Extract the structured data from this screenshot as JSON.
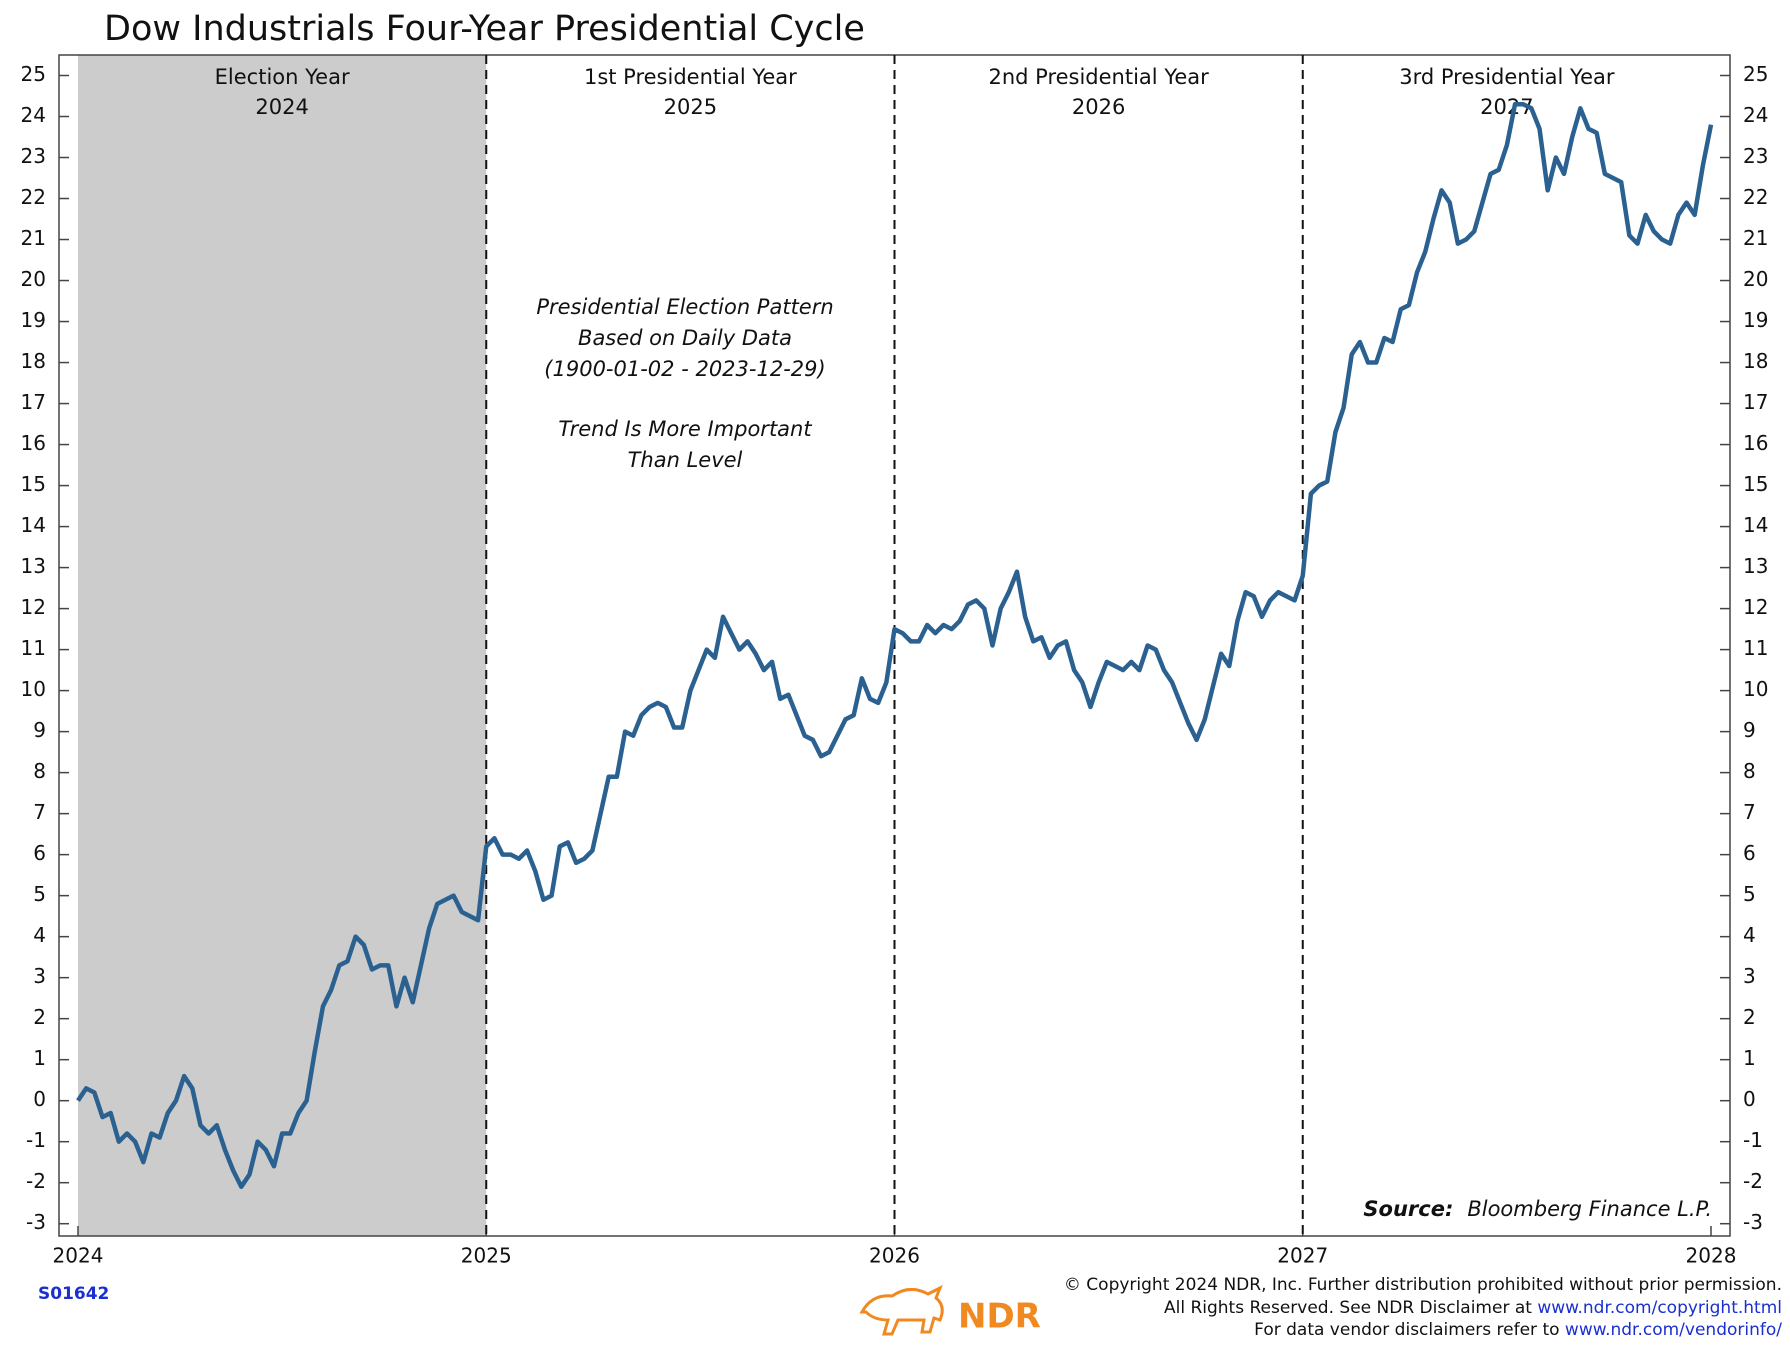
{
  "chart_data": {
    "type": "line",
    "title": "Dow Industrials Four-Year Presidential Cycle",
    "periods": [
      {
        "label": "Election Year",
        "year": "2024"
      },
      {
        "label": "1st Presidential Year",
        "year": "2025"
      },
      {
        "label": "2nd Presidential Year",
        "year": "2026"
      },
      {
        "label": "3rd Presidential Year",
        "year": "2027"
      }
    ],
    "highlight_span": [
      2024,
      2025
    ],
    "highlight_color": "#cccccc",
    "annotation": [
      "Presidential Election Pattern",
      "Based on Daily Data",
      "(1900-01-02 - 2023-12-29)",
      "Trend Is More Important",
      "Than Level"
    ],
    "source_label": "Source:",
    "source": "Bloomberg Finance L.P.",
    "chart_id": "S01642",
    "copyright": [
      "© Copyright 2024 NDR, Inc. Further distribution prohibited without prior permission.",
      "All Rights Reserved. See NDR Disclaimer at ",
      "For data vendor disclaimers refer to "
    ],
    "links": [
      "www.ndr.com/copyright.html",
      "www.ndr.com/vendorinfo/"
    ],
    "logo": "NDR",
    "xlim": [
      2024,
      2028
    ],
    "xticks": [
      2024,
      2025,
      2026,
      2027,
      2028
    ],
    "ylim": [
      -3.3,
      25.5
    ],
    "yticks": [
      -3,
      -2,
      -1,
      0,
      1,
      2,
      3,
      4,
      5,
      6,
      7,
      8,
      9,
      10,
      11,
      12,
      13,
      14,
      15,
      16,
      17,
      18,
      19,
      20,
      21,
      22,
      23,
      24,
      25
    ],
    "x": [
      2024.0,
      2024.02,
      2024.04,
      2024.06,
      2024.08,
      2024.1,
      2024.12,
      2024.14,
      2024.16,
      2024.18,
      2024.2,
      2024.22,
      2024.24,
      2024.26,
      2024.28,
      2024.3,
      2024.32,
      2024.34,
      2024.36,
      2024.38,
      2024.4,
      2024.42,
      2024.44,
      2024.46,
      2024.48,
      2024.5,
      2024.52,
      2024.54,
      2024.56,
      2024.58,
      2024.6,
      2024.62,
      2024.64,
      2024.66,
      2024.68,
      2024.7,
      2024.72,
      2024.74,
      2024.76,
      2024.78,
      2024.8,
      2024.82,
      2024.84,
      2024.86,
      2024.88,
      2024.9,
      2024.92,
      2024.94,
      2024.96,
      2024.98,
      2025.0,
      2025.02,
      2025.04,
      2025.06,
      2025.08,
      2025.1,
      2025.12,
      2025.14,
      2025.16,
      2025.18,
      2025.2,
      2025.22,
      2025.24,
      2025.26,
      2025.28,
      2025.3,
      2025.32,
      2025.34,
      2025.36,
      2025.38,
      2025.4,
      2025.42,
      2025.44,
      2025.46,
      2025.48,
      2025.5,
      2025.52,
      2025.54,
      2025.56,
      2025.58,
      2025.6,
      2025.62,
      2025.64,
      2025.66,
      2025.68,
      2025.7,
      2025.72,
      2025.74,
      2025.76,
      2025.78,
      2025.8,
      2025.82,
      2025.84,
      2025.86,
      2025.88,
      2025.9,
      2025.92,
      2025.94,
      2025.96,
      2025.98,
      2026.0,
      2026.02,
      2026.04,
      2026.06,
      2026.08,
      2026.1,
      2026.12,
      2026.14,
      2026.16,
      2026.18,
      2026.2,
      2026.22,
      2026.24,
      2026.26,
      2026.28,
      2026.3,
      2026.32,
      2026.34,
      2026.36,
      2026.38,
      2026.4,
      2026.42,
      2026.44,
      2026.46,
      2026.48,
      2026.5,
      2026.52,
      2026.54,
      2026.56,
      2026.58,
      2026.6,
      2026.62,
      2026.64,
      2026.66,
      2026.68,
      2026.7,
      2026.72,
      2026.74,
      2026.76,
      2026.78,
      2026.8,
      2026.82,
      2026.84,
      2026.86,
      2026.88,
      2026.9,
      2026.92,
      2026.94,
      2026.96,
      2026.98,
      2027.0,
      2027.02,
      2027.04,
      2027.06,
      2027.08,
      2027.1,
      2027.12,
      2027.14,
      2027.16,
      2027.18,
      2027.2,
      2027.22,
      2027.24,
      2027.26,
      2027.28,
      2027.3,
      2027.32,
      2027.34,
      2027.36,
      2027.38,
      2027.4,
      2027.42,
      2027.44,
      2027.46,
      2027.48,
      2027.5,
      2027.52,
      2027.54,
      2027.56,
      2027.58,
      2027.6,
      2027.62,
      2027.64,
      2027.66,
      2027.68,
      2027.7,
      2027.72,
      2027.74,
      2027.76,
      2027.78,
      2027.8,
      2027.82,
      2027.84,
      2027.86,
      2027.88,
      2027.9,
      2027.92,
      2027.94,
      2027.96,
      2027.98,
      2028.0
    ],
    "series": [
      {
        "name": "Dow Industrials",
        "color": "#2b6190",
        "values": [
          0,
          0.3,
          0.2,
          -0.4,
          -0.3,
          -1.0,
          -0.8,
          -1.0,
          -1.5,
          -0.8,
          -0.9,
          -0.3,
          0,
          0.6,
          0.3,
          -0.6,
          -0.8,
          -0.6,
          -1.2,
          -1.7,
          -2.1,
          -1.8,
          -1.0,
          -1.2,
          -1.6,
          -0.8,
          -0.8,
          -0.3,
          0,
          1.2,
          2.3,
          2.7,
          3.3,
          3.4,
          4.0,
          3.8,
          3.2,
          3.3,
          3.3,
          2.3,
          3.0,
          2.4,
          3.3,
          4.2,
          4.8,
          4.9,
          5.0,
          4.6,
          4.5,
          4.4,
          6.2,
          6.4,
          6.0,
          6.0,
          5.9,
          6.1,
          5.6,
          4.9,
          5.0,
          6.2,
          6.3,
          5.8,
          5.9,
          6.1,
          7.0,
          7.9,
          7.9,
          9.0,
          8.9,
          9.4,
          9.6,
          9.7,
          9.6,
          9.1,
          9.1,
          10.0,
          10.5,
          11.0,
          10.8,
          11.8,
          11.4,
          11.0,
          11.2,
          10.9,
          10.5,
          10.7,
          9.8,
          9.9,
          9.4,
          8.9,
          8.8,
          8.4,
          8.5,
          8.9,
          9.3,
          9.4,
          10.3,
          9.8,
          9.7,
          10.2,
          11.5,
          11.4,
          11.2,
          11.2,
          11.6,
          11.4,
          11.6,
          11.5,
          11.7,
          12.1,
          12.2,
          12.0,
          11.1,
          12.0,
          12.4,
          12.9,
          11.8,
          11.2,
          11.3,
          10.8,
          11.1,
          11.2,
          10.5,
          10.2,
          9.6,
          10.2,
          10.7,
          10.6,
          10.5,
          10.7,
          10.5,
          11.1,
          11.0,
          10.5,
          10.2,
          9.7,
          9.2,
          8.8,
          9.3,
          10.1,
          10.9,
          10.6,
          11.7,
          12.4,
          12.3,
          11.8,
          12.2,
          12.4,
          12.3,
          12.2,
          12.8,
          14.8,
          15.0,
          15.1,
          16.3,
          16.9,
          18.2,
          18.5,
          18.0,
          18.0,
          18.6,
          18.5,
          19.3,
          19.4,
          20.2,
          20.7,
          21.5,
          22.2,
          21.9,
          20.9,
          21.0,
          21.2,
          21.9,
          22.6,
          22.7,
          23.3,
          24.3,
          24.3,
          24.2,
          23.7,
          22.2,
          23.0,
          22.6,
          23.5,
          24.2,
          23.7,
          23.6,
          22.6,
          22.5,
          22.4,
          21.1,
          20.9,
          21.6,
          21.2,
          21.0,
          20.9,
          21.6,
          21.9,
          21.6,
          22.8,
          23.8
        ]
      }
    ]
  }
}
